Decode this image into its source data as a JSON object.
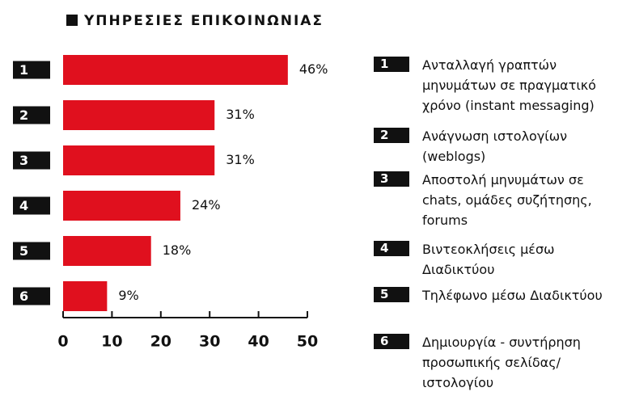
{
  "chart_data": {
    "type": "barh",
    "title": "ΥΠΗΡΕΣΙΕΣ ΕΠΙΚΟΙΝΩΝΙΑΣ",
    "categories": [
      "1",
      "2",
      "3",
      "4",
      "5",
      "6"
    ],
    "values": [
      46,
      31,
      31,
      24,
      18,
      9
    ],
    "value_labels": [
      "46%",
      "31%",
      "31%",
      "24%",
      "18%",
      "9%"
    ],
    "color": "#e0101e",
    "xlim": [
      0,
      50
    ],
    "xticks": [
      0,
      10,
      20,
      30,
      40,
      50
    ],
    "descriptions": [
      "Ανταλλαγή γραπτών μηνυμάτων σε πραγματικό χρόνο (instant messaging)",
      "Ανάγνωση ιστολογίων (weblogs)",
      "Αποστολή μηνυμάτων σε chats, ομάδες συζήτησης, forums",
      "Βιντεοκλήσεις μέσω Διαδικτύου",
      "Τηλέφωνο μέσω Διαδικτύου",
      "Δημιουργία - συντήρηση προσωπικής σελίδας/ ιστολογίου"
    ]
  }
}
